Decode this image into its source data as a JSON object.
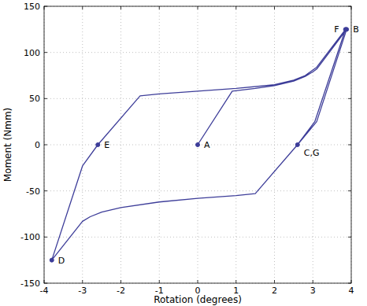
{
  "chart_data": {
    "type": "line",
    "x_label": "Rotation (degrees)",
    "y_label": "Moment (Nmm)",
    "xlim": [
      -4,
      4
    ],
    "xticks": [
      -4,
      -3,
      -2,
      -1,
      0,
      1,
      2,
      3,
      4
    ],
    "ylim": [
      -150,
      150
    ],
    "yticks": [
      -150,
      -100,
      -50,
      0,
      50,
      100,
      150
    ],
    "grid": true,
    "series": [
      {
        "color": "#3d3d99",
        "line_style": "solid",
        "x": [
          0,
          0.9,
          1.5,
          2.0,
          2.5,
          2.8,
          3.0,
          3.1,
          3.88,
          3.1,
          2.6,
          1.5,
          1.0,
          0,
          -1,
          -2,
          -2.5,
          -2.8,
          -3.0,
          -3.8,
          -3.0,
          -2.6,
          -1.5,
          -1,
          0,
          1,
          2,
          2.5,
          2.8,
          3.1,
          3.85,
          3.05,
          2.6
        ],
        "values": [
          0,
          58,
          61,
          64,
          69,
          74,
          79,
          82,
          125,
          25,
          0,
          -53,
          -55,
          -58,
          -62,
          -68,
          -73,
          -78,
          -83,
          -125,
          -23,
          0,
          53,
          55,
          58,
          61,
          65,
          70,
          75,
          84,
          125,
          25,
          0
        ]
      }
    ],
    "annotations": [
      {
        "text": "A",
        "x": 0,
        "y": 0
      },
      {
        "text": "B",
        "x": 3.88,
        "y": 125
      },
      {
        "text": "C,G",
        "x": 2.6,
        "y": 0
      },
      {
        "text": "D",
        "x": -3.8,
        "y": -125
      },
      {
        "text": "E",
        "x": -2.6,
        "y": 0
      },
      {
        "text": "F",
        "x": 3.85,
        "y": 125
      }
    ]
  }
}
